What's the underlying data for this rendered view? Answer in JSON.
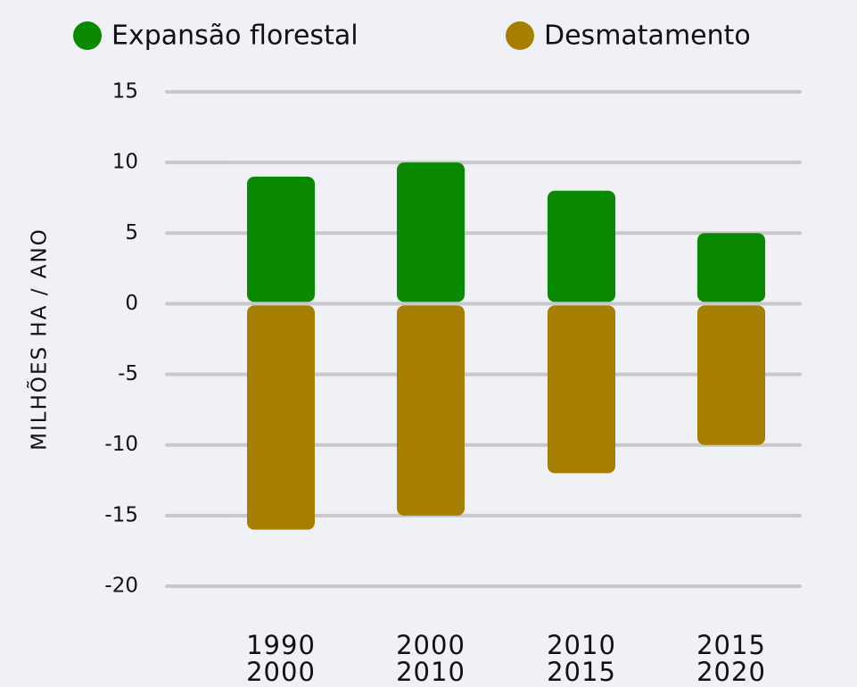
{
  "chart_data": {
    "type": "bar",
    "categories": [
      [
        "1990",
        "2000"
      ],
      [
        "2000",
        "2010"
      ],
      [
        "2010",
        "2015"
      ],
      [
        "2015",
        "2020"
      ]
    ],
    "series": [
      {
        "name": "Expansão florestal",
        "color": "#0a8a00",
        "values": [
          9,
          10,
          8,
          5
        ]
      },
      {
        "name": "Desmatamento",
        "color": "#a67f00",
        "values": [
          -16,
          -15,
          -12,
          -10
        ]
      }
    ],
    "ylabel": "MILHÕES HA / ANO",
    "ylim": [
      -20,
      15
    ],
    "yticks": [
      -20,
      -15,
      -10,
      -5,
      0,
      5,
      10,
      15
    ],
    "grid": true,
    "legend": "top"
  }
}
